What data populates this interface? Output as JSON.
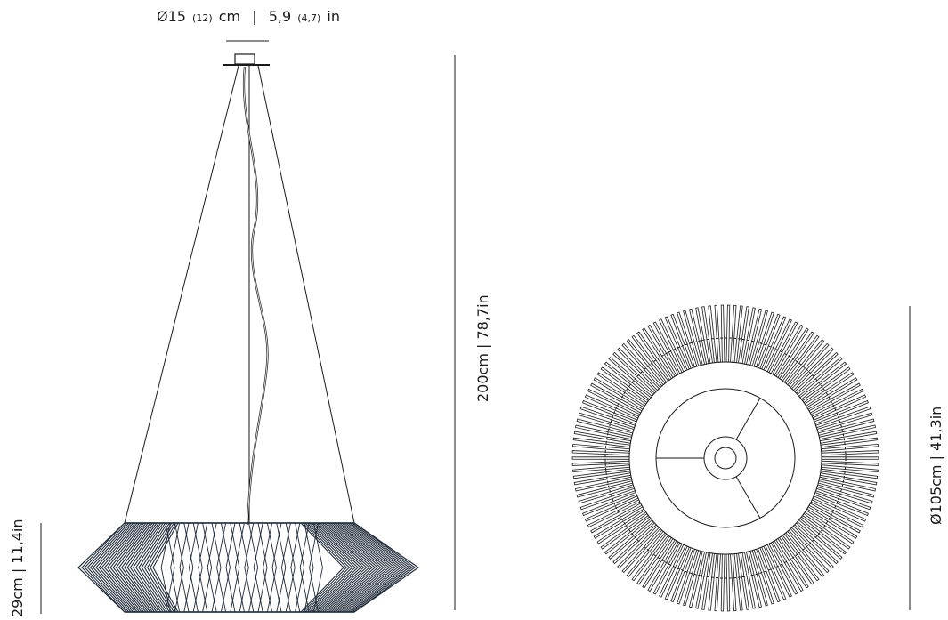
{
  "canopy_dimension": {
    "diameter_cm": "Ø15",
    "diameter_cm_alt": "(12)",
    "unit_cm": "cm",
    "separator": "|",
    "diameter_in": "5,9",
    "diameter_in_alt": "(4,7)",
    "unit_in": "in"
  },
  "overall_height_label": "200cm  |  78,7in",
  "shade_height_label": "29cm  |  11,4in",
  "shade_diameter_label": "Ø105cm  |  41,3in",
  "colors": {
    "line": "#1a1a1a",
    "shade_wire": "#1f2a38",
    "background": "#ffffff"
  }
}
